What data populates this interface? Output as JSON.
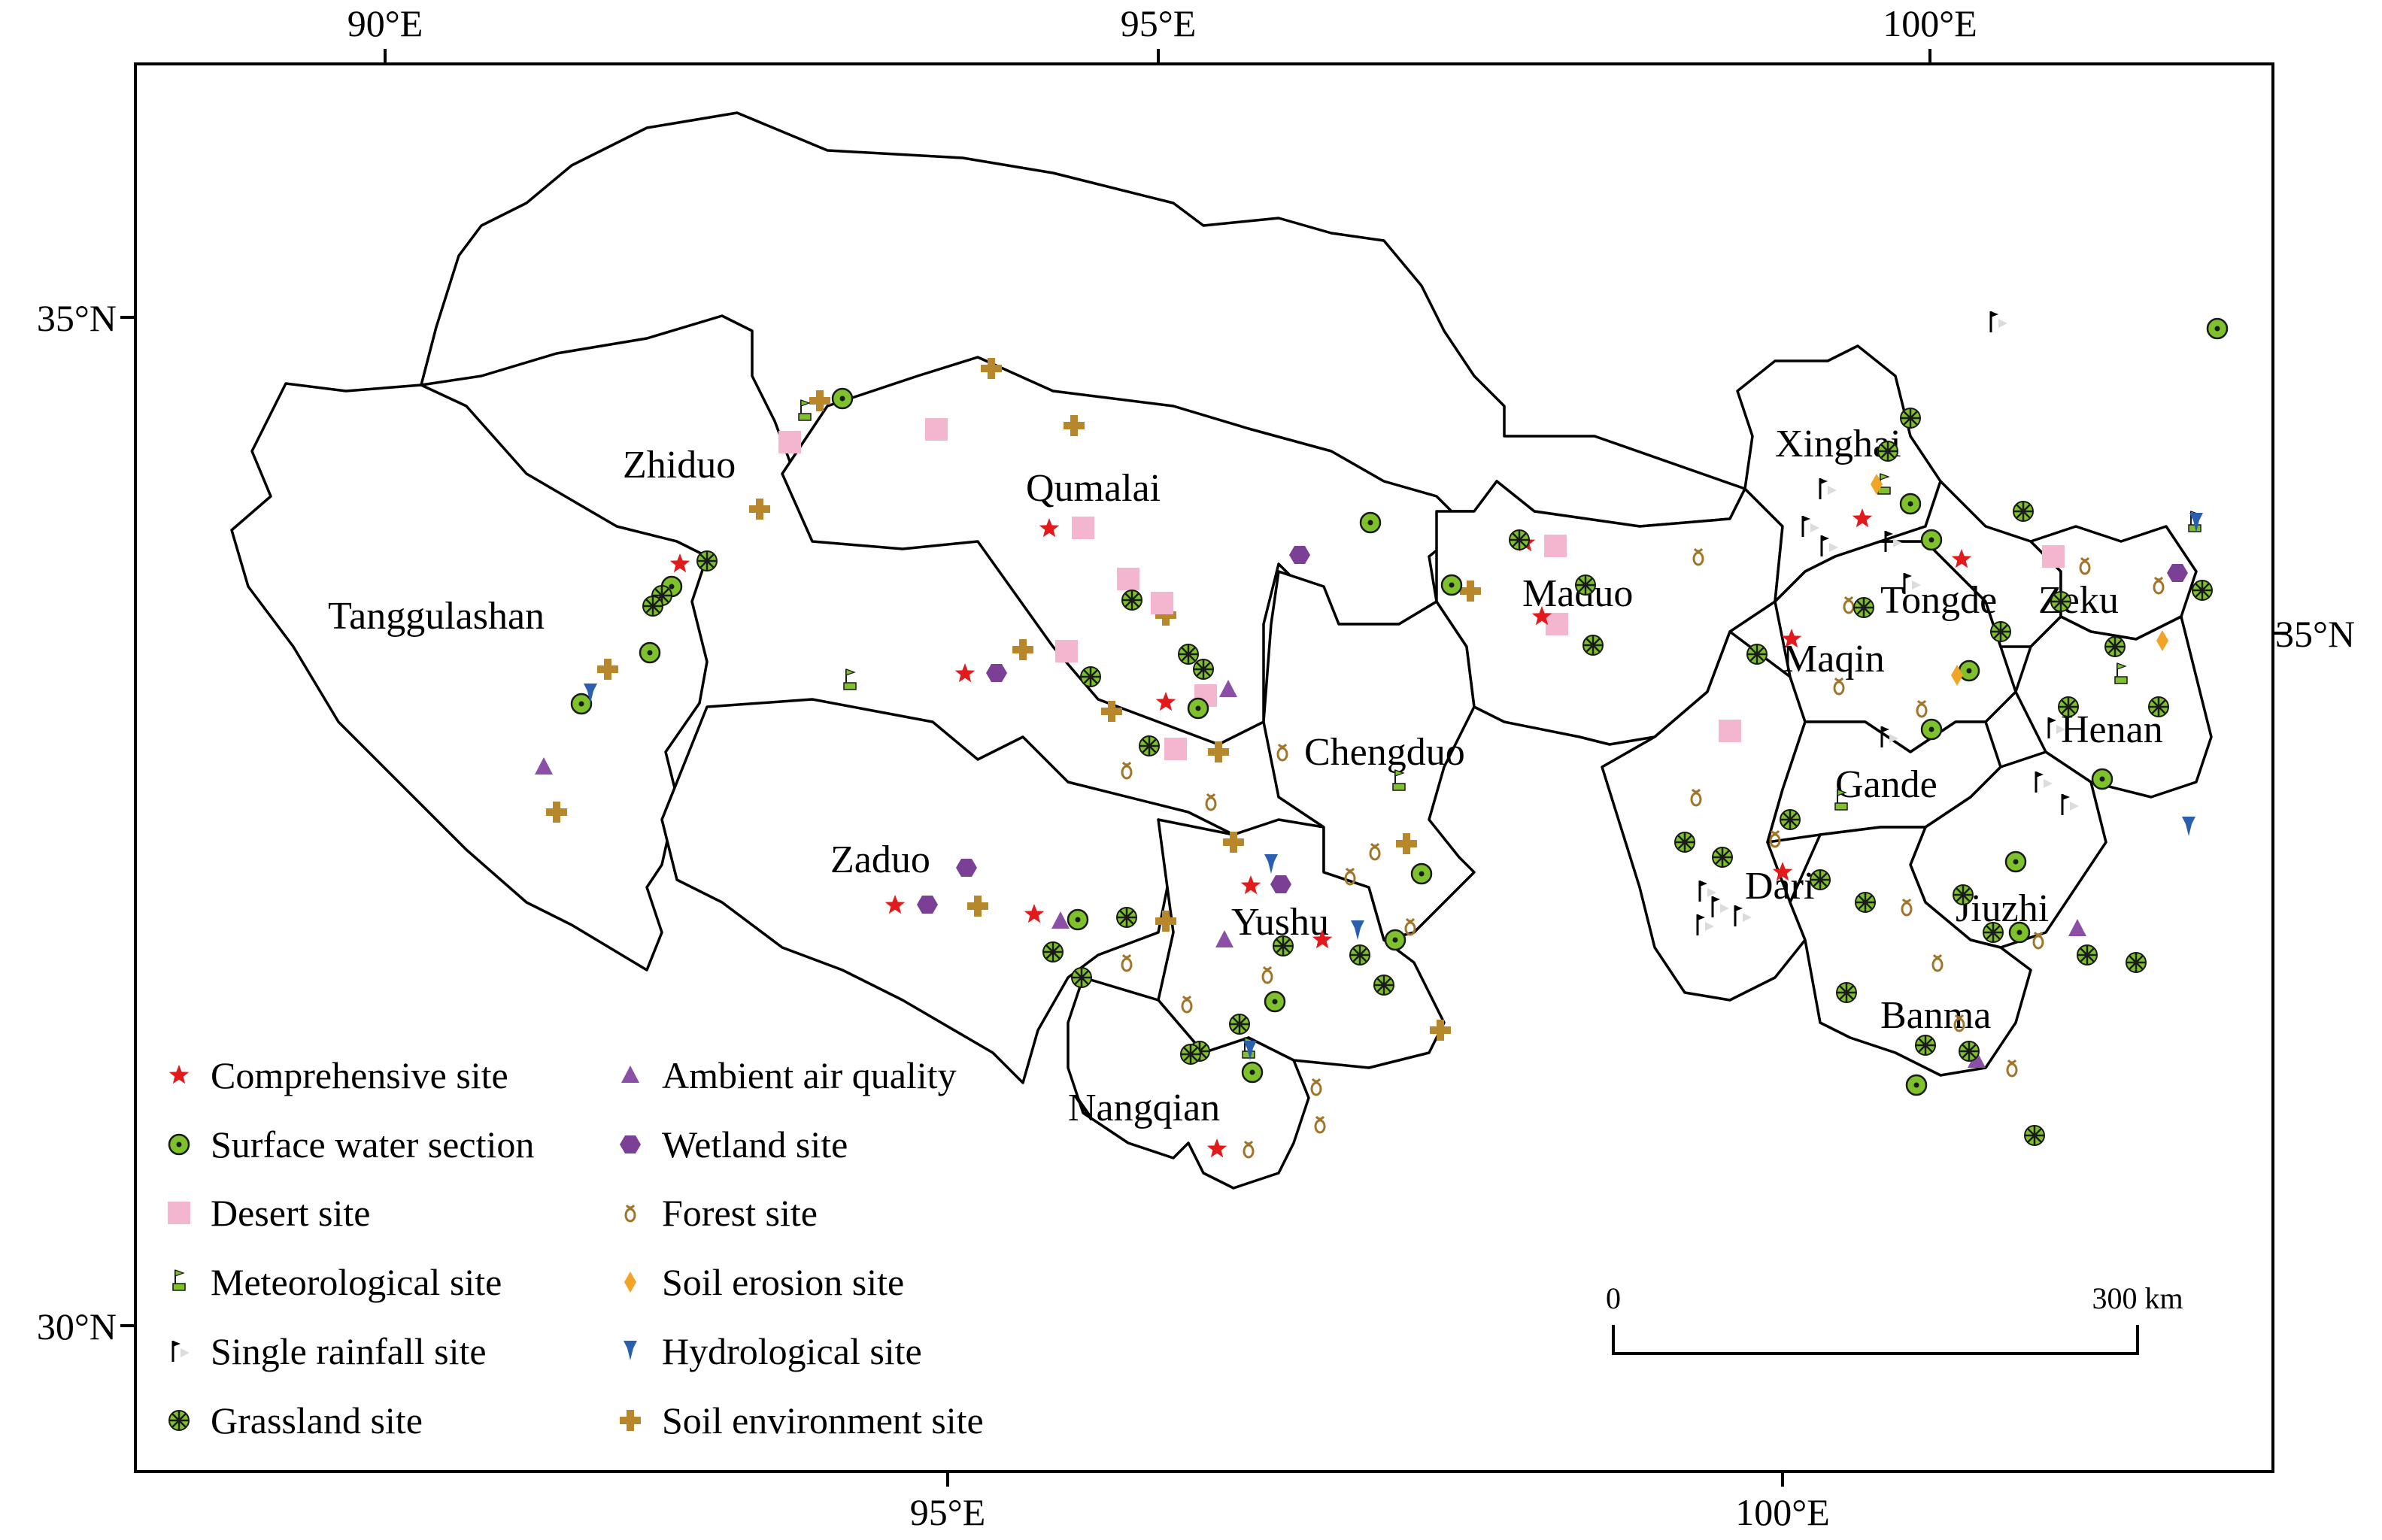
{
  "top_ticks": [
    "90°E",
    "95°E",
    "100°E"
  ],
  "bottom_ticks": [
    "95°E",
    "100°E"
  ],
  "left_ticks": [
    "35°N",
    "30°N"
  ],
  "right_ticks": [
    "35°N"
  ],
  "counties": [
    "Zhiduo",
    "Qumalai",
    "Tanggulashan",
    "Maduo",
    "Xinghai",
    "Tongde",
    "Zeku",
    "Maqin",
    "Henan",
    "Chengduo",
    "Gande",
    "Zaduo",
    "Dari",
    "Jiuzhi",
    "Yushu",
    "Banma",
    "Nangqian"
  ],
  "legend": [
    {
      "label": "Comprehensive site",
      "icon": "red-star-icon",
      "color": "#e31a1c"
    },
    {
      "label": "Surface water section",
      "icon": "green-circle-dot-icon",
      "color": "#7ec12a"
    },
    {
      "label": "Desert site",
      "icon": "pink-square-icon",
      "color": "#f4b6cf"
    },
    {
      "label": "Meteorological site",
      "icon": "green-flag-icon",
      "color": "#7ec12a"
    },
    {
      "label": "Single rainfall site",
      "icon": "black-white-flag-icon",
      "color": "#000000"
    },
    {
      "label": "Grassland site",
      "icon": "green-asterisk-icon",
      "color": "#56c02e"
    },
    {
      "label": "Ambient air quality",
      "icon": "purple-triangle-icon",
      "color": "#8b4fa7"
    },
    {
      "label": "Wetland site",
      "icon": "purple-hexagon-icon",
      "color": "#7b3f96"
    },
    {
      "label": "Forest site",
      "icon": "brown-glyph-icon",
      "color": "#a0752a"
    },
    {
      "label": "Soil erosion site",
      "icon": "orange-diamond-icon",
      "color": "#f0a428"
    },
    {
      "label": "Hydrological site",
      "icon": "blue-pin-icon",
      "color": "#2a5fb0"
    },
    {
      "label": "Soil environment site",
      "icon": "brown-plus-icon",
      "color": "#b8862b"
    }
  ],
  "scale_bar": {
    "start": "0",
    "end": "300 km"
  }
}
